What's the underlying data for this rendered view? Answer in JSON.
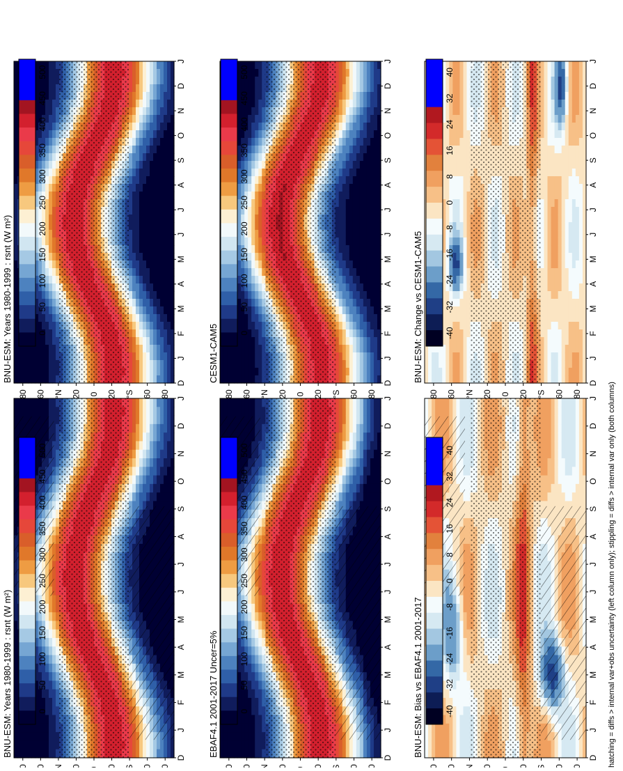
{
  "footer_note": "hatching = diffs > internal var+obs uncertainty (left column only); stippling = diffs > internal var only (both columns)",
  "palette_mean": [
    "#000033",
    "#101c5c",
    "#1f3a88",
    "#2f5fa8",
    "#4d82bf",
    "#76a6d3",
    "#a5c9e4",
    "#d1e6f1",
    "#f2f9fb",
    "#fdf0d3",
    "#f7c87e",
    "#ee9c43",
    "#e0782a",
    "#d95e2a",
    "#e6473a",
    "#ea3a4a",
    "#d3202e",
    "#a31421",
    "#0000ff",
    "#0000ff",
    "#0000ff"
  ],
  "palette_diff": [
    "#000022",
    "#0d1d55",
    "#1f3f86",
    "#3468a6",
    "#6c9ec9",
    "#a3c7e1",
    "#d6e9f2",
    "#f4fbfd",
    "#fbe5c3",
    "#f7c087",
    "#f0a060",
    "#e2813d",
    "#e45336",
    "#d32a2a",
    "#b1181f",
    "#0000ff",
    "#0000ff",
    "#0000ff"
  ],
  "chart_data": [
    {
      "type": "heatmap",
      "title": "BNU-ESM: Years 1980-1999 : rsnt (W m²)",
      "field": "mean",
      "x": [
        "D",
        "J",
        "F",
        "M",
        "A",
        "M",
        "J",
        "J",
        "A",
        "S",
        "O",
        "N",
        "D",
        "J"
      ],
      "y": [
        "80",
        "60",
        "°N",
        "20",
        "0",
        "20",
        "°S",
        "60",
        "80"
      ],
      "colorbar_ticks": [
        "500",
        "450",
        "400",
        "350",
        "300",
        "250",
        "200",
        "150",
        "100",
        "50",
        "0"
      ],
      "hatching": true,
      "stippling": true
    },
    {
      "type": "heatmap",
      "title": "BNU-ESM: Years 1980-1999 : rsnt (W m²)",
      "field": "mean",
      "x": [
        "D",
        "J",
        "F",
        "M",
        "A",
        "M",
        "J",
        "J",
        "A",
        "S",
        "O",
        "N",
        "D",
        "J"
      ],
      "y": [
        "80",
        "60",
        "°N",
        "20",
        "0",
        "20",
        "°S",
        "60",
        "80"
      ],
      "colorbar_ticks": [
        "500",
        "450",
        "400",
        "350",
        "300",
        "250",
        "200",
        "150",
        "100",
        "50",
        "0"
      ],
      "hatching": false,
      "stippling": true
    },
    {
      "type": "heatmap",
      "title": "EBAF4.1 2001-2017 Uncer=5%",
      "field": "mean",
      "x": [
        "D",
        "J",
        "F",
        "M",
        "A",
        "M",
        "J",
        "J",
        "A",
        "S",
        "O",
        "N",
        "D",
        "J"
      ],
      "y": [
        "80",
        "60",
        "°N",
        "20",
        "0",
        "20",
        "°S",
        "60",
        "80"
      ],
      "colorbar_ticks": [
        "500",
        "450",
        "400",
        "350",
        "300",
        "250",
        "200",
        "150",
        "100",
        "50",
        "0"
      ],
      "hatching": true,
      "stippling": true
    },
    {
      "type": "heatmap",
      "title": "CESM1-CAM5",
      "field": "mean",
      "x": [
        "D",
        "J",
        "F",
        "M",
        "A",
        "M",
        "J",
        "J",
        "A",
        "S",
        "O",
        "N",
        "D",
        "J"
      ],
      "y": [
        "80",
        "60",
        "°N",
        "20",
        "0",
        "20",
        "°S",
        "60",
        "80"
      ],
      "colorbar_ticks": [
        "500",
        "450",
        "400",
        "350",
        "300",
        "250",
        "200",
        "150",
        "100",
        "50",
        "0"
      ],
      "hatching": false,
      "stippling": true
    },
    {
      "type": "heatmap",
      "title": "BNU-ESM: Bias vs EBAF4.1 2001-2017",
      "field": "diff",
      "x": [
        "D",
        "J",
        "F",
        "M",
        "A",
        "M",
        "J",
        "J",
        "A",
        "S",
        "O",
        "N",
        "D",
        "J"
      ],
      "y": [
        "80",
        "60",
        "°N",
        "20",
        "0",
        "20",
        "°S",
        "60",
        "80"
      ],
      "colorbar_ticks": [
        "40",
        "32",
        "24",
        "16",
        "8",
        "0",
        "-8",
        "-16",
        "-24",
        "-32",
        "-40"
      ],
      "hatching": true,
      "stippling": true
    },
    {
      "type": "heatmap",
      "title": "BNU-ESM: Change vs CESM1-CAM5",
      "field": "diff",
      "x": [
        "D",
        "J",
        "F",
        "M",
        "A",
        "M",
        "J",
        "J",
        "A",
        "S",
        "O",
        "N",
        "D",
        "J"
      ],
      "y": [
        "80",
        "60",
        "°N",
        "20",
        "0",
        "20",
        "°S",
        "60",
        "80"
      ],
      "colorbar_ticks": [
        "40",
        "32",
        "24",
        "16",
        "8",
        "0",
        "-8",
        "-16",
        "-24",
        "-32",
        "-40"
      ],
      "hatching": false,
      "stippling": true
    }
  ]
}
